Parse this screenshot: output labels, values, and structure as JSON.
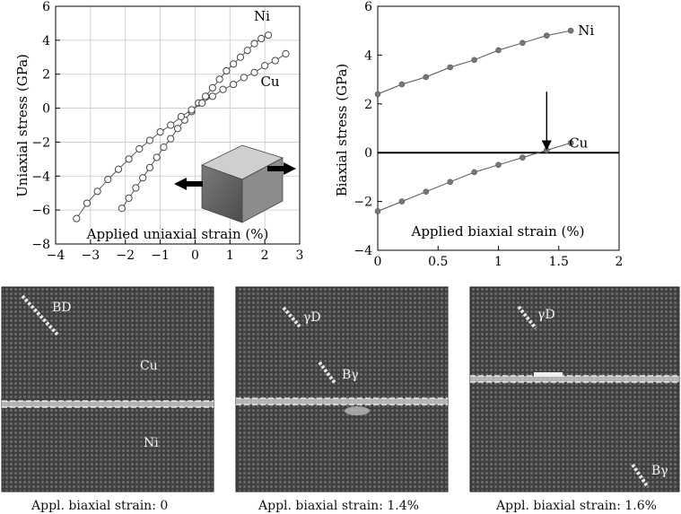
{
  "chart_data": [
    {
      "type": "line",
      "xlabel": "Applied uniaxial strain (%)",
      "ylabel": "Uniaxial stress (GPa)",
      "xlim": [
        -4,
        3
      ],
      "ylim": [
        -8,
        6
      ],
      "xticks": [
        -4,
        -3,
        -2,
        -1,
        0,
        1,
        2,
        3
      ],
      "yticks": [
        -8,
        -6,
        -4,
        -2,
        0,
        2,
        4,
        6
      ],
      "grid": true,
      "series": [
        {
          "name": "Ni",
          "x": [
            -2.1,
            -1.9,
            -1.7,
            -1.5,
            -1.3,
            -1.1,
            -0.9,
            -0.7,
            -0.5,
            -0.3,
            -0.1,
            0.1,
            0.3,
            0.5,
            0.7,
            0.9,
            1.1,
            1.3,
            1.5,
            1.7,
            1.9,
            2.1
          ],
          "y": [
            -5.9,
            -5.3,
            -4.7,
            -4.1,
            -3.5,
            -2.9,
            -2.3,
            -1.8,
            -1.2,
            -0.7,
            -0.2,
            0.3,
            0.7,
            1.2,
            1.7,
            2.2,
            2.6,
            3.0,
            3.4,
            3.8,
            4.1,
            4.3
          ]
        },
        {
          "name": "Cu",
          "x": [
            -3.4,
            -3.1,
            -2.8,
            -2.5,
            -2.2,
            -1.9,
            -1.6,
            -1.3,
            -1.0,
            -0.7,
            -0.4,
            -0.1,
            0.2,
            0.5,
            0.8,
            1.1,
            1.4,
            1.7,
            2.0,
            2.3,
            2.6
          ],
          "y": [
            -6.5,
            -5.6,
            -4.9,
            -4.2,
            -3.6,
            -3.0,
            -2.4,
            -1.9,
            -1.4,
            -1.0,
            -0.5,
            -0.1,
            0.3,
            0.7,
            1.1,
            1.4,
            1.8,
            2.1,
            2.5,
            2.8,
            3.2
          ]
        }
      ]
    },
    {
      "type": "line",
      "xlabel": "Applied biaxial strain (%)",
      "ylabel": "Biaxial stress (GPa)",
      "xlim": [
        0,
        2
      ],
      "ylim": [
        -4,
        6
      ],
      "xticks": [
        0,
        0.5,
        1,
        1.5,
        2
      ],
      "xtick_labels": [
        "0",
        "0.5",
        "1",
        "1.5",
        "2"
      ],
      "yticks": [
        -4,
        -2,
        0,
        2,
        4,
        6
      ],
      "grid": false,
      "zero_line": true,
      "arrow_at_x": 1.4,
      "series": [
        {
          "name": "Ni",
          "x": [
            0,
            0.2,
            0.4,
            0.6,
            0.8,
            1.0,
            1.2,
            1.4,
            1.6
          ],
          "y": [
            2.4,
            2.8,
            3.1,
            3.5,
            3.8,
            4.2,
            4.5,
            4.8,
            5.0
          ]
        },
        {
          "name": "Cu",
          "x": [
            0,
            0.2,
            0.4,
            0.6,
            0.8,
            1.0,
            1.2,
            1.4,
            1.6
          ],
          "y": [
            -2.4,
            -2.0,
            -1.6,
            -1.2,
            -0.8,
            -0.5,
            -0.2,
            0.1,
            0.4
          ]
        }
      ]
    }
  ],
  "panels": {
    "a": {
      "labels": [
        "BD",
        "Cu",
        "Ni"
      ],
      "caption": "Appl. biaxial strain: 0"
    },
    "b": {
      "labels": [
        "γD",
        "Bγ"
      ],
      "caption": "Appl. biaxial strain: 1.4%"
    },
    "c": {
      "labels": [
        "γD",
        "Bγ"
      ],
      "caption": "Appl. biaxial strain: 1.6%"
    }
  }
}
